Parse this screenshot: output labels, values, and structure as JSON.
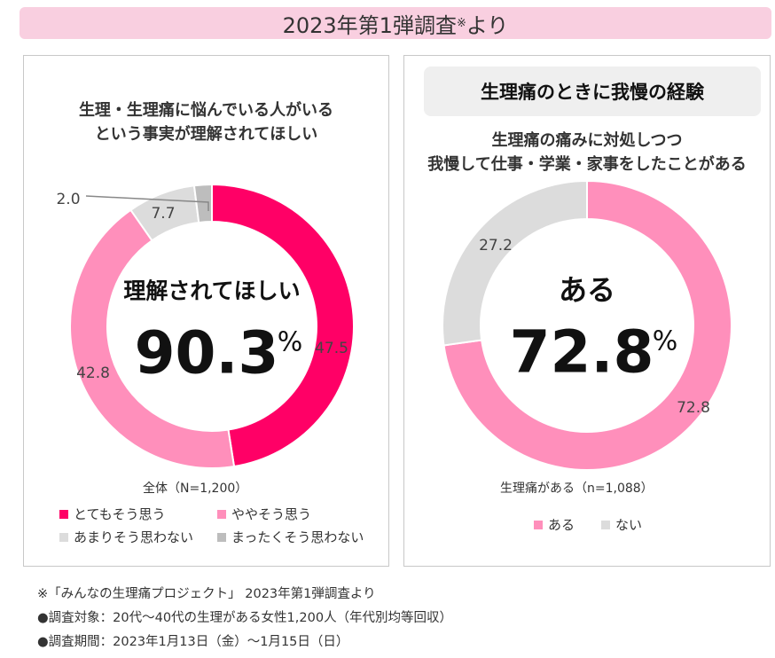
{
  "header": {
    "title": "2023年第1弾調査",
    "title_suffix_mark": "※",
    "title_suffix": "より"
  },
  "chart_data": [
    {
      "type": "pie",
      "title": "生理・生理痛に悩んでいる人がいる という事実が理解されてほしい",
      "title_lines": [
        "生理・生理痛に悩んでいる人がいる",
        "という事実が理解されてほしい"
      ],
      "center_text": "理解されてほしい",
      "center_value": "90.3",
      "center_unit": "%",
      "base_label": "全体（N=1,200）",
      "categories": [
        "とてもそう思う",
        "ややそう思う",
        "あまりそう思わない",
        "まったくそう思わない"
      ],
      "values": [
        47.5,
        42.8,
        7.7,
        2.0
      ],
      "value_labels": [
        "47.5",
        "42.8",
        "7.7",
        "2.0"
      ],
      "colors": [
        "#ff0066",
        "#ff8fbb",
        "#dcdcdc",
        "#bdbdbd"
      ],
      "legend": "bottom"
    },
    {
      "type": "pie",
      "heading": "生理痛のときに我慢の経験",
      "title": "生理痛の痛みに対処しつつ 我慢して仕事・学業・家事をしたことがある",
      "title_lines": [
        "生理痛の痛みに対処しつつ",
        "我慢して仕事・学業・家事をしたことがある"
      ],
      "center_text": "ある",
      "center_value": "72.8",
      "center_unit": "%",
      "base_label": "生理痛がある（n=1,088）",
      "categories": [
        "ある",
        "ない"
      ],
      "values": [
        72.8,
        27.2
      ],
      "value_labels": [
        "72.8",
        "27.2"
      ],
      "colors": [
        "#ff8fbb",
        "#dcdcdc"
      ],
      "legend": "bottom"
    }
  ],
  "footnotes": [
    "※「みんなの生理痛プロジェクト」 2023年第1弾調査より",
    "●調査対象：20代～40代の生理がある女性1,200人（年代別均等回収）",
    "●調査期間：2023年1月13日（金）～1月15日（日）"
  ]
}
